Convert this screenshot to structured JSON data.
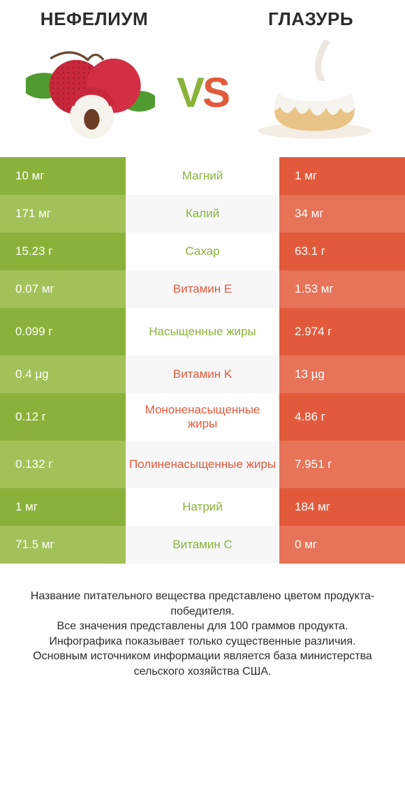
{
  "header": {
    "left_title": "НЕФЕЛИУМ",
    "right_title": "ГЛАЗУРЬ",
    "vs_v": "V",
    "vs_s": "S"
  },
  "colors": {
    "green_primary": "#8ab23a",
    "green_alt": "#a2c158",
    "orange_primary": "#e25a3b",
    "orange_alt": "#e77358",
    "stripe": "#f7f7f7",
    "white": "#ffffff",
    "text": "#2b2b2b"
  },
  "rows": [
    {
      "label": "Магний",
      "left": "10 мг",
      "right": "1 мг",
      "winner": "left",
      "tall": false
    },
    {
      "label": "Калий",
      "left": "171 мг",
      "right": "34 мг",
      "winner": "left",
      "tall": false
    },
    {
      "label": "Сахар",
      "left": "15.23 г",
      "right": "63.1 г",
      "winner": "left",
      "tall": false
    },
    {
      "label": "Витамин E",
      "left": "0.07 мг",
      "right": "1.53 мг",
      "winner": "right",
      "tall": false
    },
    {
      "label": "Насыщенные жиры",
      "left": "0.099 г",
      "right": "2.974 г",
      "winner": "left",
      "tall": true
    },
    {
      "label": "Витамин K",
      "left": "0.4 µg",
      "right": "13 µg",
      "winner": "right",
      "tall": false
    },
    {
      "label": "Мононенасыщенные жиры",
      "left": "0.12 г",
      "right": "4.86 г",
      "winner": "right",
      "tall": true
    },
    {
      "label": "Полиненасыщенные жиры",
      "left": "0.132 г",
      "right": "7.951 г",
      "winner": "right",
      "tall": true
    },
    {
      "label": "Натрий",
      "left": "1 мг",
      "right": "184 мг",
      "winner": "left",
      "tall": false
    },
    {
      "label": "Витамин C",
      "left": "71.5 мг",
      "right": "0 мг",
      "winner": "left",
      "tall": false
    }
  ],
  "footer": {
    "line1": "Название питательного вещества представлено цветом продукта-победителя.",
    "line2": "Все значения представлены для 100 граммов продукта.",
    "line3": "Инфографика показывает только существенные различия.",
    "line4": "Основным источником информации является база министерства сельского хозяйства США."
  }
}
